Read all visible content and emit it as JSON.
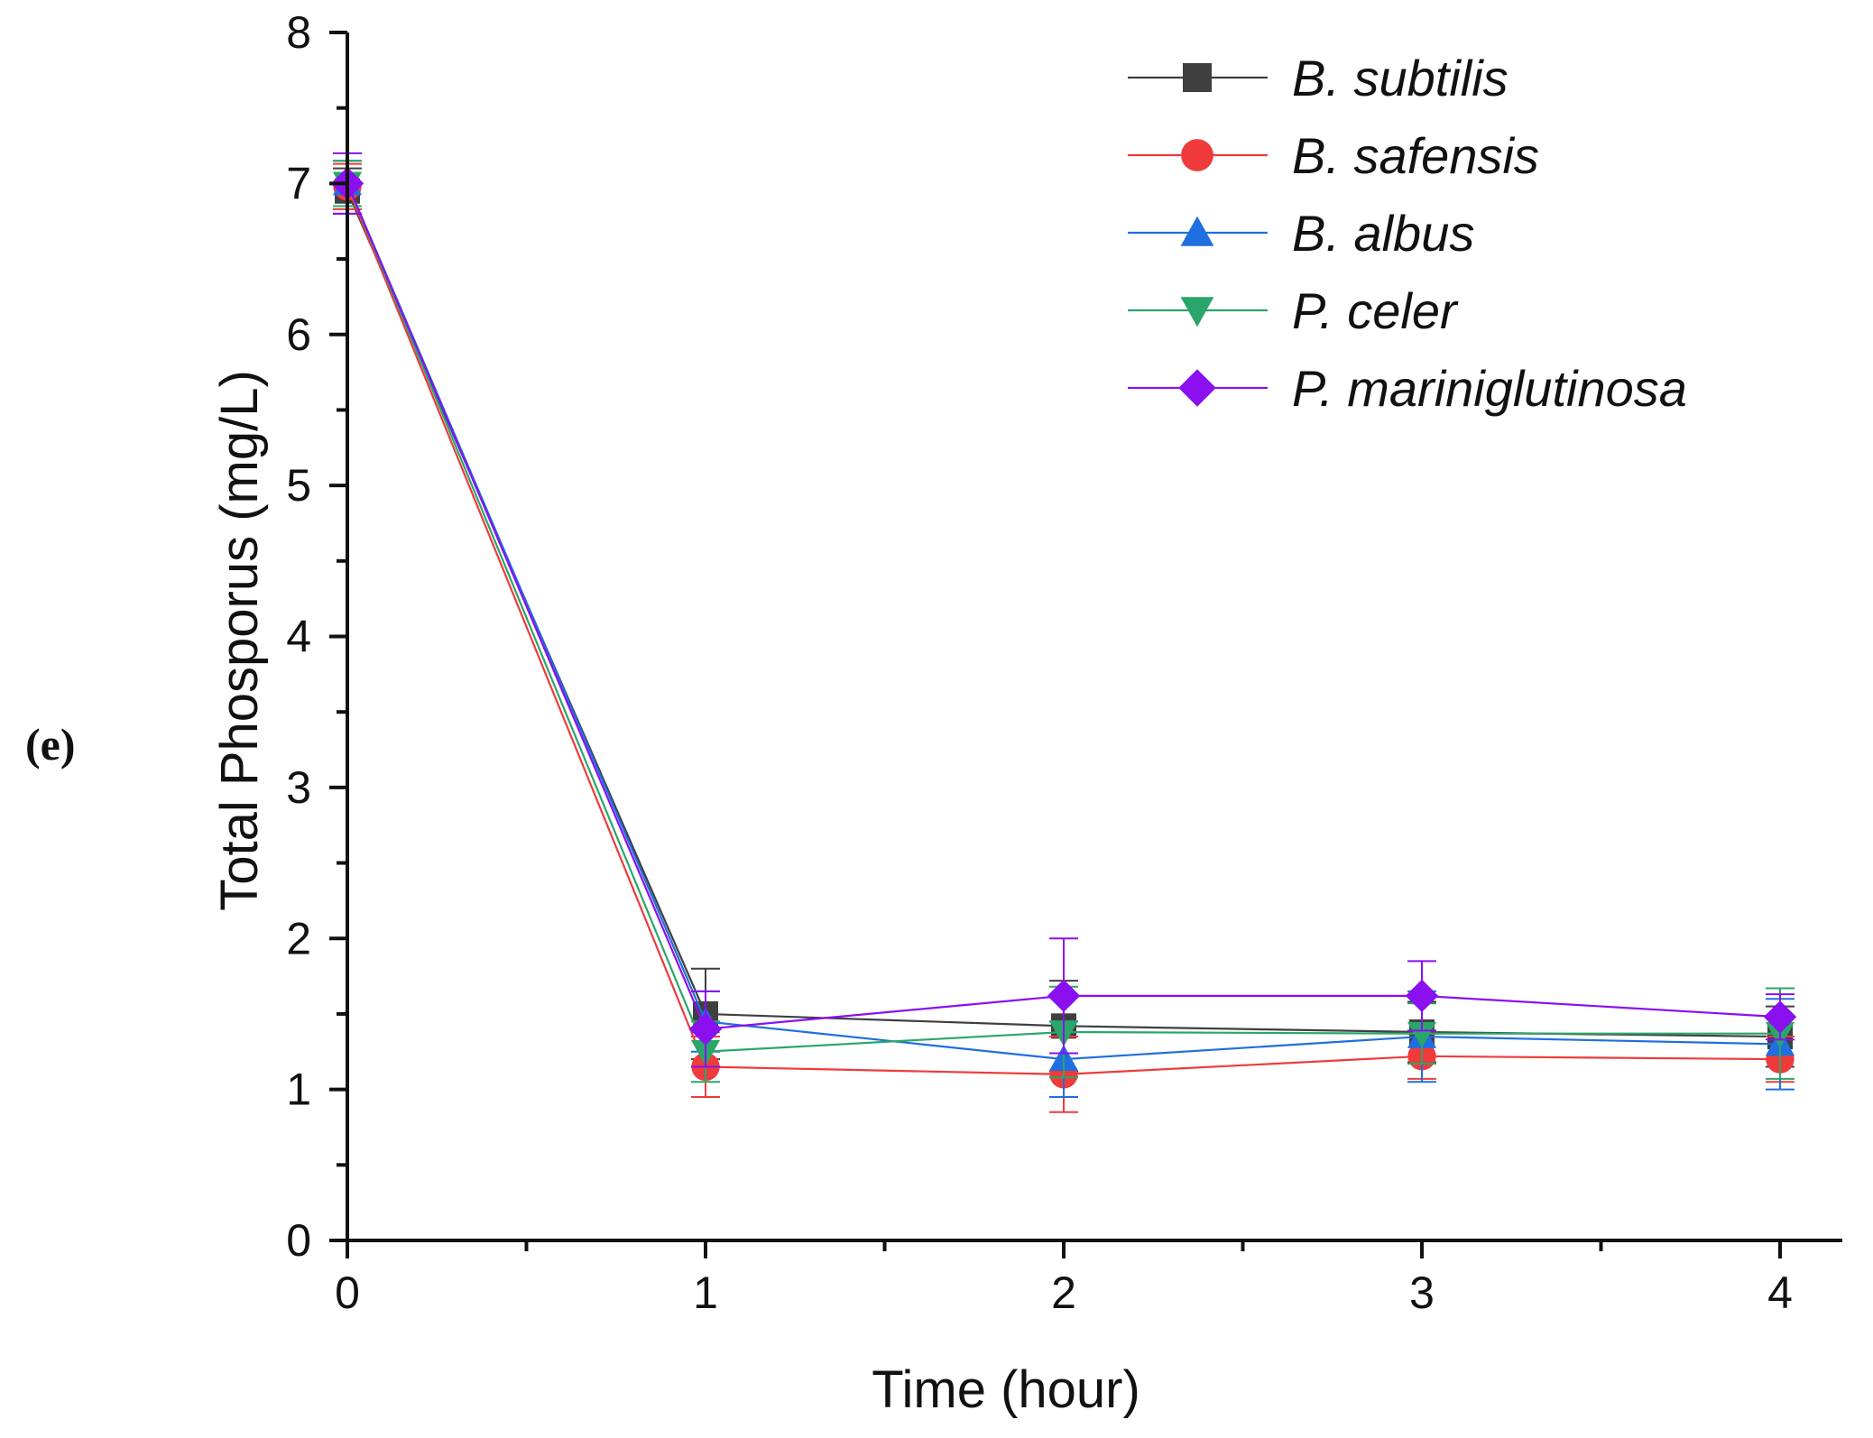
{
  "panel_label": "(e)",
  "chart_data": {
    "type": "line",
    "title": "",
    "xlabel": "Time (hour)",
    "ylabel": "Total Phosporus (mg/L)",
    "xlim": [
      0,
      4.2
    ],
    "ylim": [
      0,
      8
    ],
    "x": [
      0,
      1,
      2,
      3,
      4
    ],
    "x_ticks": [
      "0",
      "1",
      "2",
      "3",
      "4"
    ],
    "y_ticks": [
      "0",
      "1",
      "2",
      "3",
      "4",
      "5",
      "6",
      "7",
      "8"
    ],
    "grid": false,
    "legend_position": "top-right",
    "series": [
      {
        "name": "B. subtilis",
        "color": "#3f3f3f",
        "marker": "square",
        "values": [
          6.95,
          1.5,
          1.42,
          1.38,
          1.35
        ],
        "errors": [
          0.15,
          0.3,
          0.3,
          0.2,
          0.2
        ]
      },
      {
        "name": "B. safensis",
        "color": "#ef3b3b",
        "marker": "circle",
        "values": [
          6.98,
          1.15,
          1.1,
          1.22,
          1.2
        ],
        "errors": [
          0.15,
          0.2,
          0.25,
          0.15,
          0.15
        ]
      },
      {
        "name": "B. albus",
        "color": "#1f6fe0",
        "marker": "triangle-up",
        "values": [
          7.0,
          1.45,
          1.2,
          1.35,
          1.3
        ],
        "errors": [
          0.15,
          0.2,
          0.25,
          0.3,
          0.3
        ]
      },
      {
        "name": "P. celer",
        "color": "#2aa66a",
        "marker": "triangle-down",
        "values": [
          7.0,
          1.25,
          1.38,
          1.37,
          1.37
        ],
        "errors": [
          0.15,
          0.2,
          0.3,
          0.2,
          0.3
        ]
      },
      {
        "name": "P. mariniglutinosa",
        "color": "#8a10f0",
        "marker": "diamond",
        "values": [
          7.0,
          1.4,
          1.62,
          1.62,
          1.48
        ],
        "errors": [
          0.2,
          0.25,
          0.38,
          0.23,
          0.15
        ]
      }
    ]
  }
}
